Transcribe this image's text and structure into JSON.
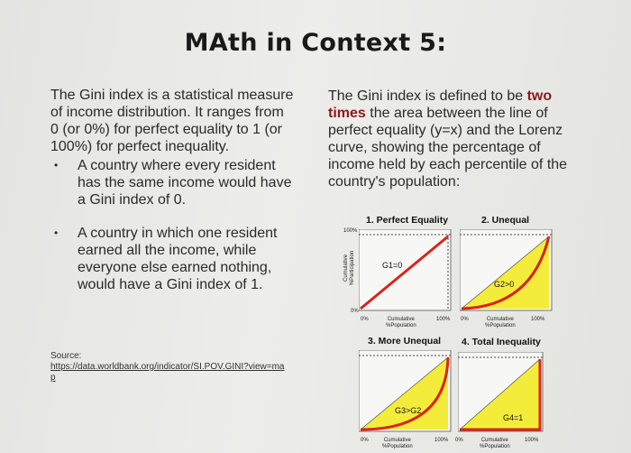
{
  "slide": {
    "title": "MAth in Context 5:",
    "left": {
      "intro": "The Gini index is a statistical measure of income distribution. It ranges from 0 (or 0%) for perfect equality to 1 (or 100%) for perfect inequality.",
      "bullets": [
        "A country where every resident has the same income would have a Gini index of 0.",
        "A country in which one resident earned all the income, while everyone else earned nothing, would have a Gini index of 1."
      ],
      "source_label": "Source:",
      "source_link": "https://data.worldbank.org/indicator/SI.POV.GINI?view=map"
    },
    "right": {
      "text_pre": "The Gini index is defined to be",
      "text_highlight": "two times",
      "text_post": "the area between the line of perfect equality (y=x) and the Lorenz curve, showing the percentage of income held by each percentile of the country's population:"
    }
  },
  "charts": {
    "ylabel_line1": "Cumulative",
    "ylabel_line2": "%Participation",
    "xlabel_line1": "Cumulative",
    "xlabel_line2": "%Population",
    "tick_0": "0%",
    "tick_100": "100%",
    "panels": [
      {
        "title": "1. Perfect Equality",
        "gini": "G1=0"
      },
      {
        "title": "2. Unequal",
        "gini": "G2>0"
      },
      {
        "title": "3. More Unequal",
        "gini": "G3>G2"
      },
      {
        "title": "4. Total Inequality",
        "gini": "G4=1"
      }
    ]
  },
  "colors": {
    "lorenz": "#d9231c",
    "fill": "#f4ec3a",
    "highlight": "#8b1a1a"
  }
}
